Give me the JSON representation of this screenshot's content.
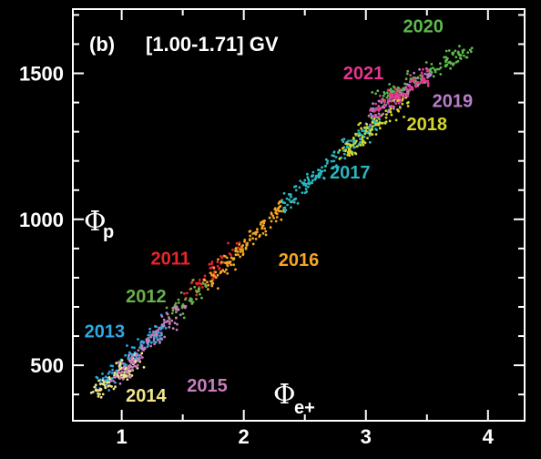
{
  "chart_data": {
    "type": "scatter",
    "panel": "(b)",
    "title": "[1.00-1.71] GV",
    "xlabel": "Φe+",
    "ylabel": "Φp",
    "xlim": [
      0.6,
      4.3
    ],
    "ylim": [
      310,
      1720
    ],
    "xticks": [
      1,
      2,
      3,
      4
    ],
    "yticks": [
      500,
      1000,
      1500
    ],
    "background": "#000000",
    "axis_color": "#ffffff",
    "series": [
      {
        "name": "2011",
        "color": "#e8262b",
        "trend": [
          [
            1.5,
            740
          ],
          [
            1.95,
            900
          ]
        ],
        "n": 55
      },
      {
        "name": "2012",
        "color": "#6ab04c",
        "trend": [
          [
            1.4,
            680
          ],
          [
            1.75,
            790
          ]
        ],
        "n": 45
      },
      {
        "name": "2013",
        "color": "#2fa8e0",
        "trend": [
          [
            0.8,
            420
          ],
          [
            1.35,
            640
          ]
        ],
        "n": 120
      },
      {
        "name": "2014",
        "color": "#f2e58a",
        "trend": [
          [
            0.78,
            405
          ],
          [
            1.15,
            520
          ]
        ],
        "n": 90
      },
      {
        "name": "2015",
        "color": "#c77dbd",
        "trend": [
          [
            0.95,
            450
          ],
          [
            1.5,
            700
          ]
        ],
        "n": 110
      },
      {
        "name": "2016",
        "color": "#f5a623",
        "trend": [
          [
            1.7,
            780
          ],
          [
            2.35,
            1060
          ]
        ],
        "n": 130
      },
      {
        "name": "2017",
        "color": "#2bb5bf",
        "trend": [
          [
            2.3,
            1040
          ],
          [
            3.1,
            1340
          ]
        ],
        "n": 170
      },
      {
        "name": "2018",
        "color": "#d4d62e",
        "trend": [
          [
            2.8,
            1220
          ],
          [
            3.35,
            1420
          ]
        ],
        "n": 110
      },
      {
        "name": "2019",
        "color": "#b77ec9",
        "trend": [
          [
            3.05,
            1360
          ],
          [
            3.55,
            1510
          ]
        ],
        "n": 100
      },
      {
        "name": "2020",
        "color": "#5cb84b",
        "trend": [
          [
            3.1,
            1410
          ],
          [
            3.85,
            1580
          ]
        ],
        "n": 120
      },
      {
        "name": "2021",
        "color": "#e8358f",
        "trend": [
          [
            3.05,
            1370
          ],
          [
            3.5,
            1490
          ]
        ],
        "n": 90
      }
    ],
    "labels": [
      {
        "text": "2020",
        "color": "#5cb84b",
        "x": 3.47,
        "y": 1640
      },
      {
        "text": "2021",
        "color": "#e8358f",
        "x": 2.98,
        "y": 1480
      },
      {
        "text": "2019",
        "color": "#b77ec9",
        "x": 3.71,
        "y": 1385
      },
      {
        "text": "2018",
        "color": "#d4d62e",
        "x": 3.5,
        "y": 1305
      },
      {
        "text": "2017",
        "color": "#2bb5bf",
        "x": 2.87,
        "y": 1140
      },
      {
        "text": "2016",
        "color": "#f5a623",
        "x": 2.45,
        "y": 840
      },
      {
        "text": "2011",
        "color": "#e8262b",
        "x": 1.4,
        "y": 845
      },
      {
        "text": "2012",
        "color": "#6ab04c",
        "x": 1.2,
        "y": 715
      },
      {
        "text": "2013",
        "color": "#2fa8e0",
        "x": 0.86,
        "y": 595
      },
      {
        "text": "2015",
        "color": "#c77dbd",
        "x": 1.7,
        "y": 410
      },
      {
        "text": "2014",
        "color": "#f2e58a",
        "x": 1.2,
        "y": 375
      }
    ]
  }
}
